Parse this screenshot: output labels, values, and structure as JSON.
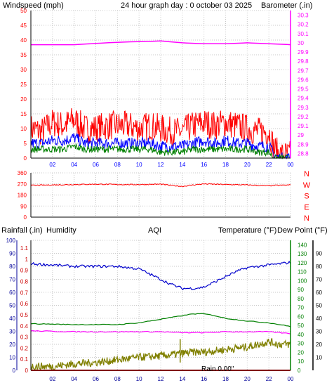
{
  "colors": {
    "wind": "#ff0000",
    "avgwind": "#0000ff",
    "gust": "#008000",
    "baro": "#ff00ff",
    "title": "#ffff00",
    "rain": "#cc0000",
    "humidity": "#000099",
    "aqi": "#808000",
    "temp": "#008000",
    "dew": "#ff00ff",
    "grid": "#c8c8c8",
    "axis": "#000000"
  },
  "chart_data": [
    {
      "type": "line",
      "title": "24 hour graph day : 0 october 03 2025",
      "left_label": "Windspeed (mph)",
      "right_label": "Barometer (.in)",
      "x_ticks": [
        "02",
        "04",
        "06",
        "08",
        "10",
        "12",
        "14",
        "16",
        "18",
        "20",
        "22",
        "00"
      ],
      "y_left_ticks": [
        "0",
        "5",
        "10",
        "15",
        "20",
        "25",
        "30",
        "35",
        "40",
        "45",
        "50"
      ],
      "y_left_range": [
        0,
        50
      ],
      "y_right_ticks": [
        "28.8",
        "28.9",
        "29",
        "29.1",
        "29.2",
        "29.3",
        "29.4",
        "29.5",
        "29.6",
        "29.7",
        "29.8",
        "29.9",
        "30",
        "30.1",
        "30.2",
        "30.3"
      ],
      "y_right_range": [
        28.75,
        30.35
      ],
      "grid": true,
      "series": [
        {
          "name": "Windspeed",
          "axis": "left",
          "color": "#ff0000",
          "keypoints": [
            [
              0,
              10
            ],
            [
              1,
              9
            ],
            [
              2,
              12
            ],
            [
              3,
              11
            ],
            [
              4,
              13
            ],
            [
              5,
              10
            ],
            [
              6,
              10
            ],
            [
              7,
              11
            ],
            [
              8,
              11
            ],
            [
              9,
              11
            ],
            [
              10,
              10
            ],
            [
              11,
              11
            ],
            [
              12,
              10
            ],
            [
              13,
              9
            ],
            [
              14,
              9
            ],
            [
              15,
              11
            ],
            [
              16,
              12
            ],
            [
              17,
              11
            ],
            [
              18,
              12
            ],
            [
              19,
              11
            ],
            [
              20,
              10
            ],
            [
              21,
              9
            ],
            [
              22,
              9
            ],
            [
              22.5,
              3
            ],
            [
              23,
              1
            ],
            [
              24,
              1
            ]
          ]
        },
        {
          "name": "Average",
          "axis": "left",
          "color": "#0000ff",
          "keypoints": [
            [
              0,
              5
            ],
            [
              1,
              5
            ],
            [
              2,
              6
            ],
            [
              3,
              6
            ],
            [
              4,
              7
            ],
            [
              5,
              5
            ],
            [
              6,
              5
            ],
            [
              7,
              5
            ],
            [
              8,
              5
            ],
            [
              9,
              5
            ],
            [
              10,
              5
            ],
            [
              11,
              5
            ],
            [
              12,
              4
            ],
            [
              13,
              4
            ],
            [
              14,
              4
            ],
            [
              15,
              5
            ],
            [
              16,
              6
            ],
            [
              17,
              5
            ],
            [
              18,
              6
            ],
            [
              19,
              5
            ],
            [
              20,
              5
            ],
            [
              21,
              4
            ],
            [
              22,
              4
            ],
            [
              22.5,
              1
            ],
            [
              23,
              0
            ],
            [
              24,
              0
            ]
          ]
        },
        {
          "name": "Gust",
          "axis": "left",
          "color": "#008000",
          "keypoints": [
            [
              0,
              3
            ],
            [
              1,
              3
            ],
            [
              2,
              3
            ],
            [
              3,
              3
            ],
            [
              4,
              4
            ],
            [
              5,
              3
            ],
            [
              6,
              3
            ],
            [
              7,
              3
            ],
            [
              8,
              3
            ],
            [
              9,
              3
            ],
            [
              10,
              3
            ],
            [
              11,
              3
            ],
            [
              12,
              2
            ],
            [
              13,
              2
            ],
            [
              14,
              2
            ],
            [
              15,
              3
            ],
            [
              16,
              3
            ],
            [
              17,
              3
            ],
            [
              18,
              3
            ],
            [
              19,
              3
            ],
            [
              20,
              3
            ],
            [
              21,
              2
            ],
            [
              22,
              2
            ],
            [
              22.5,
              0
            ],
            [
              23,
              0
            ],
            [
              24,
              0
            ]
          ]
        },
        {
          "name": "Barometer",
          "axis": "right",
          "color": "#ff00ff",
          "keypoints": [
            [
              0,
              29.98
            ],
            [
              4,
              29.98
            ],
            [
              7,
              30.0
            ],
            [
              9,
              30.01
            ],
            [
              12,
              30.02
            ],
            [
              14,
              30.0
            ],
            [
              16,
              29.99
            ],
            [
              18,
              29.99
            ],
            [
              20,
              30.0
            ],
            [
              22,
              29.99
            ],
            [
              24,
              29.98
            ]
          ]
        }
      ]
    },
    {
      "type": "line",
      "title": "",
      "left_label": "",
      "x_ticks": [
        "02",
        "04",
        "06",
        "08",
        "10",
        "12",
        "14",
        "16",
        "18",
        "20",
        "22",
        "00"
      ],
      "y_left_ticks": [
        "0",
        "90",
        "180",
        "270",
        "360"
      ],
      "y_left_range": [
        0,
        360
      ],
      "y_right_ticks": [
        "N",
        "W",
        "S",
        "E",
        "N"
      ],
      "grid": true,
      "series": [
        {
          "name": "Wind direction",
          "axis": "left",
          "color": "#ff0000",
          "keypoints": [
            [
              0,
              258
            ],
            [
              2,
              262
            ],
            [
              4,
              265
            ],
            [
              6,
              268
            ],
            [
              8,
              265
            ],
            [
              10,
              265
            ],
            [
              12,
              268
            ],
            [
              13,
              258
            ],
            [
              14,
              250
            ],
            [
              15,
              262
            ],
            [
              16,
              270
            ],
            [
              18,
              265
            ],
            [
              20,
              262
            ],
            [
              21,
              258
            ],
            [
              22,
              256
            ],
            [
              24,
              262
            ]
          ]
        }
      ]
    },
    {
      "type": "line",
      "left_label": "Rainfall (.in)",
      "left_label_2": "Humidity",
      "center_label": "AQI",
      "right_label": "Temperature (°F)",
      "right_label_2": "Dew Point (°F)",
      "x_ticks": [
        "02",
        "04",
        "06",
        "08",
        "10",
        "12",
        "14",
        "16",
        "18",
        "20",
        "22",
        "00"
      ],
      "y_rain_ticks": [
        "0",
        "0.1",
        "0.2",
        "0.3",
        "0.4",
        "0.5",
        "0.6",
        "0.7",
        "0.8",
        "0.9",
        "1",
        "1.1"
      ],
      "y_rain_range": [
        0,
        1.17
      ],
      "y_humidity_ticks": [
        "0",
        "10",
        "20",
        "30",
        "40",
        "50",
        "60",
        "70",
        "80",
        "90",
        "100"
      ],
      "y_humidity_range": [
        0,
        100
      ],
      "y_temp_ticks": [
        "0",
        "10",
        "20",
        "30",
        "40",
        "50",
        "60",
        "70",
        "80",
        "90",
        "100",
        "110",
        "120",
        "130",
        "140"
      ],
      "y_temp_range": [
        0,
        145
      ],
      "y_dew_ticks": [
        "10",
        "20",
        "30",
        "40",
        "50",
        "60",
        "70",
        "80",
        "90"
      ],
      "rain_total_text": "Rain 0.00\"",
      "grid": true,
      "series": [
        {
          "name": "Humidity",
          "axis": "humidity",
          "color": "#0000cc",
          "keypoints": [
            [
              0,
              82
            ],
            [
              2,
              81
            ],
            [
              4,
              80
            ],
            [
              6,
              80
            ],
            [
              8,
              80
            ],
            [
              10,
              78
            ],
            [
              11,
              74
            ],
            [
              12,
              70
            ],
            [
              13,
              66
            ],
            [
              14,
              63
            ],
            [
              15,
              63
            ],
            [
              16,
              64
            ],
            [
              17,
              68
            ],
            [
              18,
              72
            ],
            [
              19,
              76
            ],
            [
              20,
              79
            ],
            [
              22,
              81
            ],
            [
              24,
              83
            ]
          ]
        },
        {
          "name": "Temperature",
          "axis": "temp",
          "color": "#008000",
          "keypoints": [
            [
              0,
              52
            ],
            [
              4,
              51
            ],
            [
              8,
              51
            ],
            [
              10,
              53
            ],
            [
              12,
              57
            ],
            [
              14,
              61
            ],
            [
              15,
              63
            ],
            [
              16,
              63
            ],
            [
              17,
              61
            ],
            [
              18,
              58
            ],
            [
              20,
              55
            ],
            [
              22,
              53
            ],
            [
              24,
              49
            ]
          ]
        },
        {
          "name": "Dew Point",
          "axis": "temp",
          "color": "#ff00ff",
          "keypoints": [
            [
              0,
              44
            ],
            [
              4,
              43
            ],
            [
              8,
              43
            ],
            [
              10,
              43
            ],
            [
              12,
              43
            ],
            [
              14,
              42
            ],
            [
              16,
              42
            ],
            [
              18,
              43
            ],
            [
              20,
              43
            ],
            [
              22,
              43
            ],
            [
              24,
              41
            ]
          ]
        },
        {
          "name": "AQI",
          "axis": "humidity",
          "color": "#808000",
          "keypoints": [
            [
              0,
              3
            ],
            [
              2,
              3
            ],
            [
              4,
              5
            ],
            [
              6,
              6
            ],
            [
              8,
              8
            ],
            [
              10,
              10
            ],
            [
              12,
              11
            ],
            [
              14,
              13
            ],
            [
              15,
              14
            ],
            [
              16,
              14
            ],
            [
              18,
              16
            ],
            [
              20,
              18
            ],
            [
              22,
              22
            ],
            [
              23,
              20
            ],
            [
              24,
              20
            ]
          ]
        },
        {
          "name": "Rainfall",
          "axis": "rain",
          "color": "#ff0000",
          "keypoints": [
            [
              0,
              0
            ],
            [
              24,
              0
            ]
          ]
        }
      ]
    }
  ]
}
